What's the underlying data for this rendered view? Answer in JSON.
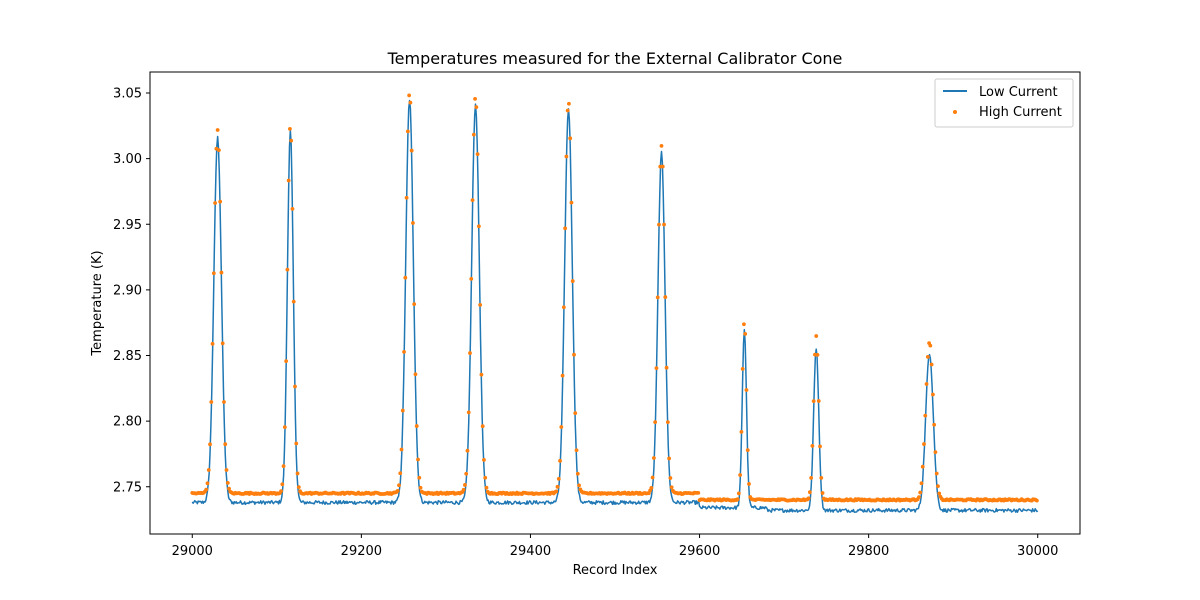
{
  "chart_data": {
    "type": "line",
    "title": "Temperatures measured for the External Calibrator Cone",
    "xlabel": "Record Index",
    "ylabel": "Temperature (K)",
    "xlim": [
      28950,
      30050
    ],
    "ylim": [
      2.714,
      3.066
    ],
    "x_ticks": [
      29000,
      29200,
      29400,
      29600,
      29800,
      30000
    ],
    "x_tick_labels": [
      "29000",
      "29200",
      "29400",
      "29600",
      "29800",
      "30000"
    ],
    "y_ticks": [
      2.75,
      2.8,
      2.85,
      2.9,
      2.95,
      3.0,
      3.05
    ],
    "y_tick_labels": [
      "2.75",
      "2.80",
      "2.85",
      "2.90",
      "2.95",
      "3.00",
      "3.05"
    ],
    "grid": false,
    "legend": {
      "position": "top-right",
      "entries": [
        "Low Current",
        "High Current"
      ]
    },
    "x_range": [
      29000,
      30000
    ],
    "peaks": [
      {
        "x": 29030,
        "width": 4.5,
        "low_peak": 3.016,
        "high_peak": 3.022
      },
      {
        "x": 29116,
        "width": 3.5,
        "low_peak": 3.021,
        "high_peak": 3.025
      },
      {
        "x": 29257,
        "width": 4.5,
        "low_peak": 3.045,
        "high_peak": 3.05
      },
      {
        "x": 29335,
        "width": 4.5,
        "low_peak": 3.041,
        "high_peak": 3.047
      },
      {
        "x": 29445,
        "width": 4.5,
        "low_peak": 3.038,
        "high_peak": 3.044
      },
      {
        "x": 29555,
        "width": 4.2,
        "low_peak": 3.004,
        "high_peak": 3.01
      },
      {
        "x": 29653,
        "width": 2.5,
        "low_peak": 2.87,
        "high_peak": 2.877
      },
      {
        "x": 29738,
        "width": 3.0,
        "low_peak": 2.856,
        "high_peak": 2.865
      },
      {
        "x": 29872,
        "width": 4.5,
        "low_peak": 2.852,
        "high_peak": 2.86
      }
    ],
    "baseline_segments": [
      {
        "x_start": 29000,
        "x_end": 29600,
        "low": 2.738,
        "high": 2.745
      },
      {
        "x_start": 29600,
        "x_end": 29680,
        "low": 2.734,
        "high": 2.74
      },
      {
        "x_start": 29680,
        "x_end": 30000,
        "low": 2.732,
        "high": 2.74
      }
    ],
    "series": [
      {
        "name": "Low Current",
        "style": "line",
        "color": "#1f77b4"
      },
      {
        "name": "High Current",
        "style": "scatter",
        "color": "#ff7f0e"
      }
    ]
  }
}
